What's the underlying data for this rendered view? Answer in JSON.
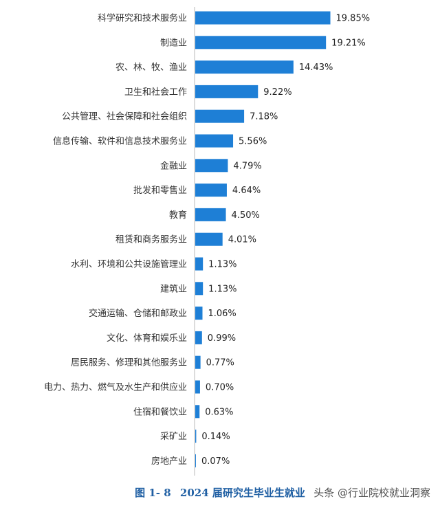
{
  "chart_data": {
    "type": "bar",
    "orientation": "horizontal",
    "categories": [
      "科学研究和技术服务业",
      "制造业",
      "农、林、牧、渔业",
      "卫生和社会工作",
      "公共管理、社会保障和社会组织",
      "信息传输、软件和信息技术服务业",
      "金融业",
      "批发和零售业",
      "教育",
      "租赁和商务服务业",
      "水利、环境和公共设施管理业",
      "建筑业",
      "交通运输、仓储和邮政业",
      "文化、体育和娱乐业",
      "居民服务、修理和其他服务业",
      "电力、热力、燃气及水生产和供应业",
      "住宿和餐饮业",
      "采矿业",
      "房地产业"
    ],
    "values": [
      19.85,
      19.21,
      14.43,
      9.22,
      7.18,
      5.56,
      4.79,
      4.64,
      4.5,
      4.01,
      1.13,
      1.13,
      1.06,
      0.99,
      0.77,
      0.7,
      0.63,
      0.14,
      0.07
    ],
    "value_labels": [
      "19.85%",
      "19.21%",
      "14.43%",
      "9.22%",
      "7.18%",
      "5.56%",
      "4.79%",
      "4.64%",
      "4.50%",
      "4.01%",
      "1.13%",
      "1.13%",
      "1.06%",
      "0.99%",
      "0.77%",
      "0.70%",
      "0.63%",
      "0.14%",
      "0.07%"
    ],
    "xlim": [
      0,
      20
    ],
    "grid": false,
    "bar_color": "#1e7fd6"
  },
  "caption": {
    "figure_no": "图 1- 8",
    "title": "2024 届研究生毕业生就业"
  },
  "watermark": "头条 @行业院校就业洞察"
}
